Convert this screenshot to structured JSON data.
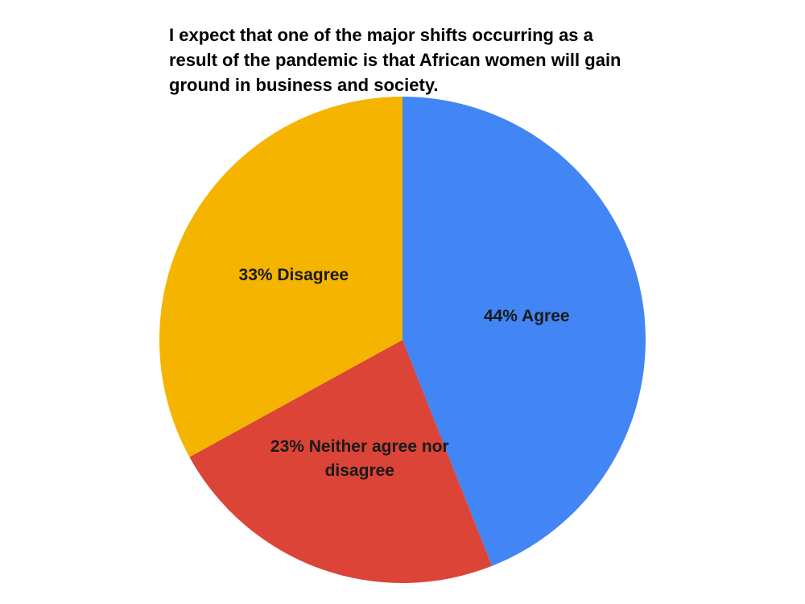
{
  "chart_data": {
    "type": "pie",
    "title": "I expect that one of the major shifts occurring as a result of the pandemic is that African women will gain ground in business and society.",
    "values": [
      44,
      23,
      33
    ],
    "value_labels": [
      "44% Agree",
      "23% Neither agree nor disagree",
      "33% Disagree"
    ],
    "colors": [
      "#4285f4",
      "#db4437",
      "#f4b400"
    ]
  }
}
